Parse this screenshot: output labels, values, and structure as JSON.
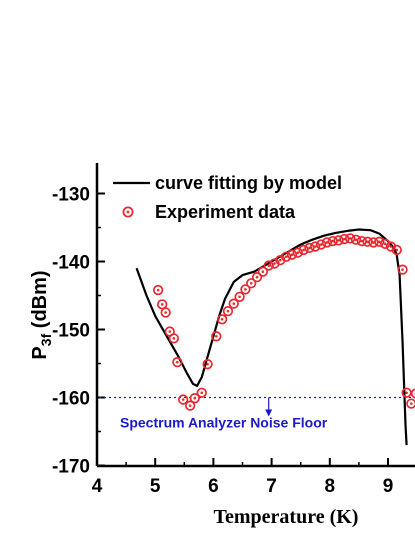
{
  "chart_data": {
    "type": "scatter",
    "xlabel": "Temperature (K)",
    "ylabel_main": "P",
    "ylabel_sub": "3f",
    "ylabel_unit": " (dBm)",
    "xlim": [
      4,
      9.5
    ],
    "ylim": [
      -170,
      -126
    ],
    "x_ticks": [
      "4",
      "5",
      "6",
      "7",
      "8",
      "9"
    ],
    "y_ticks": [
      "-130",
      "-140",
      "-150",
      "-160",
      "-170"
    ],
    "x_tick_values": [
      4,
      5,
      6,
      7,
      8,
      9
    ],
    "y_tick_values": [
      -130,
      -140,
      -150,
      -160,
      -170
    ],
    "legend_position": "top-right",
    "noise_floor": {
      "value": -160,
      "label": "Spectrum Analyzer Noise Floor",
      "color": "#1a1acc"
    },
    "series": [
      {
        "name": "curve fitting by model",
        "kind": "line",
        "color": "#000000",
        "x": [
          4.68,
          4.85,
          5.0,
          5.2,
          5.4,
          5.55,
          5.65,
          5.72,
          5.8,
          5.9,
          6.0,
          6.1,
          6.2,
          6.35,
          6.5,
          6.7,
          6.9,
          7.1,
          7.3,
          7.5,
          7.7,
          7.9,
          8.1,
          8.3,
          8.5,
          8.7,
          8.85,
          9.0,
          9.1,
          9.15,
          9.2,
          9.25,
          9.3,
          9.32
        ],
        "y": [
          -141,
          -145,
          -148,
          -151,
          -154,
          -156.5,
          -158,
          -158.3,
          -157,
          -154,
          -151,
          -148,
          -145.5,
          -143,
          -142,
          -141.5,
          -140.5,
          -139.5,
          -138.5,
          -137.5,
          -136.8,
          -136.2,
          -135.8,
          -135.5,
          -135.3,
          -135.4,
          -135.9,
          -137,
          -138,
          -139,
          -142,
          -152,
          -164,
          -167
        ]
      },
      {
        "name": "Experiment data",
        "kind": "marker",
        "color": "#e8282f",
        "x": [
          5.05,
          5.12,
          5.18,
          5.25,
          5.32,
          5.38,
          5.48,
          5.6,
          5.68,
          5.8,
          5.9,
          6.05,
          6.15,
          6.25,
          6.35,
          6.45,
          6.55,
          6.65,
          6.75,
          6.85,
          6.95,
          7.05,
          7.15,
          7.25,
          7.35,
          7.45,
          7.55,
          7.65,
          7.75,
          7.85,
          7.95,
          8.05,
          8.15,
          8.25,
          8.35,
          8.45,
          8.55,
          8.65,
          8.75,
          8.85,
          8.95,
          9.05,
          9.15,
          9.25,
          9.32,
          9.4,
          9.48
        ],
        "y": [
          -144.2,
          -146.3,
          -147.5,
          -150.3,
          -151.3,
          -154.8,
          -160.3,
          -161.2,
          -160.1,
          -159.3,
          -155.1,
          -151,
          -148.5,
          -147.3,
          -146.2,
          -145.2,
          -144.1,
          -143.2,
          -142.3,
          -141.5,
          -140.6,
          -140.3,
          -139.8,
          -139.3,
          -139,
          -138.7,
          -138.3,
          -138,
          -137.8,
          -137.5,
          -137.2,
          -137,
          -136.9,
          -136.7,
          -136.6,
          -136.8,
          -137,
          -137.1,
          -137.2,
          -137.1,
          -137.4,
          -137.8,
          -138.3,
          -141.2,
          -159.3,
          -160.9,
          -159.4
        ]
      }
    ]
  }
}
